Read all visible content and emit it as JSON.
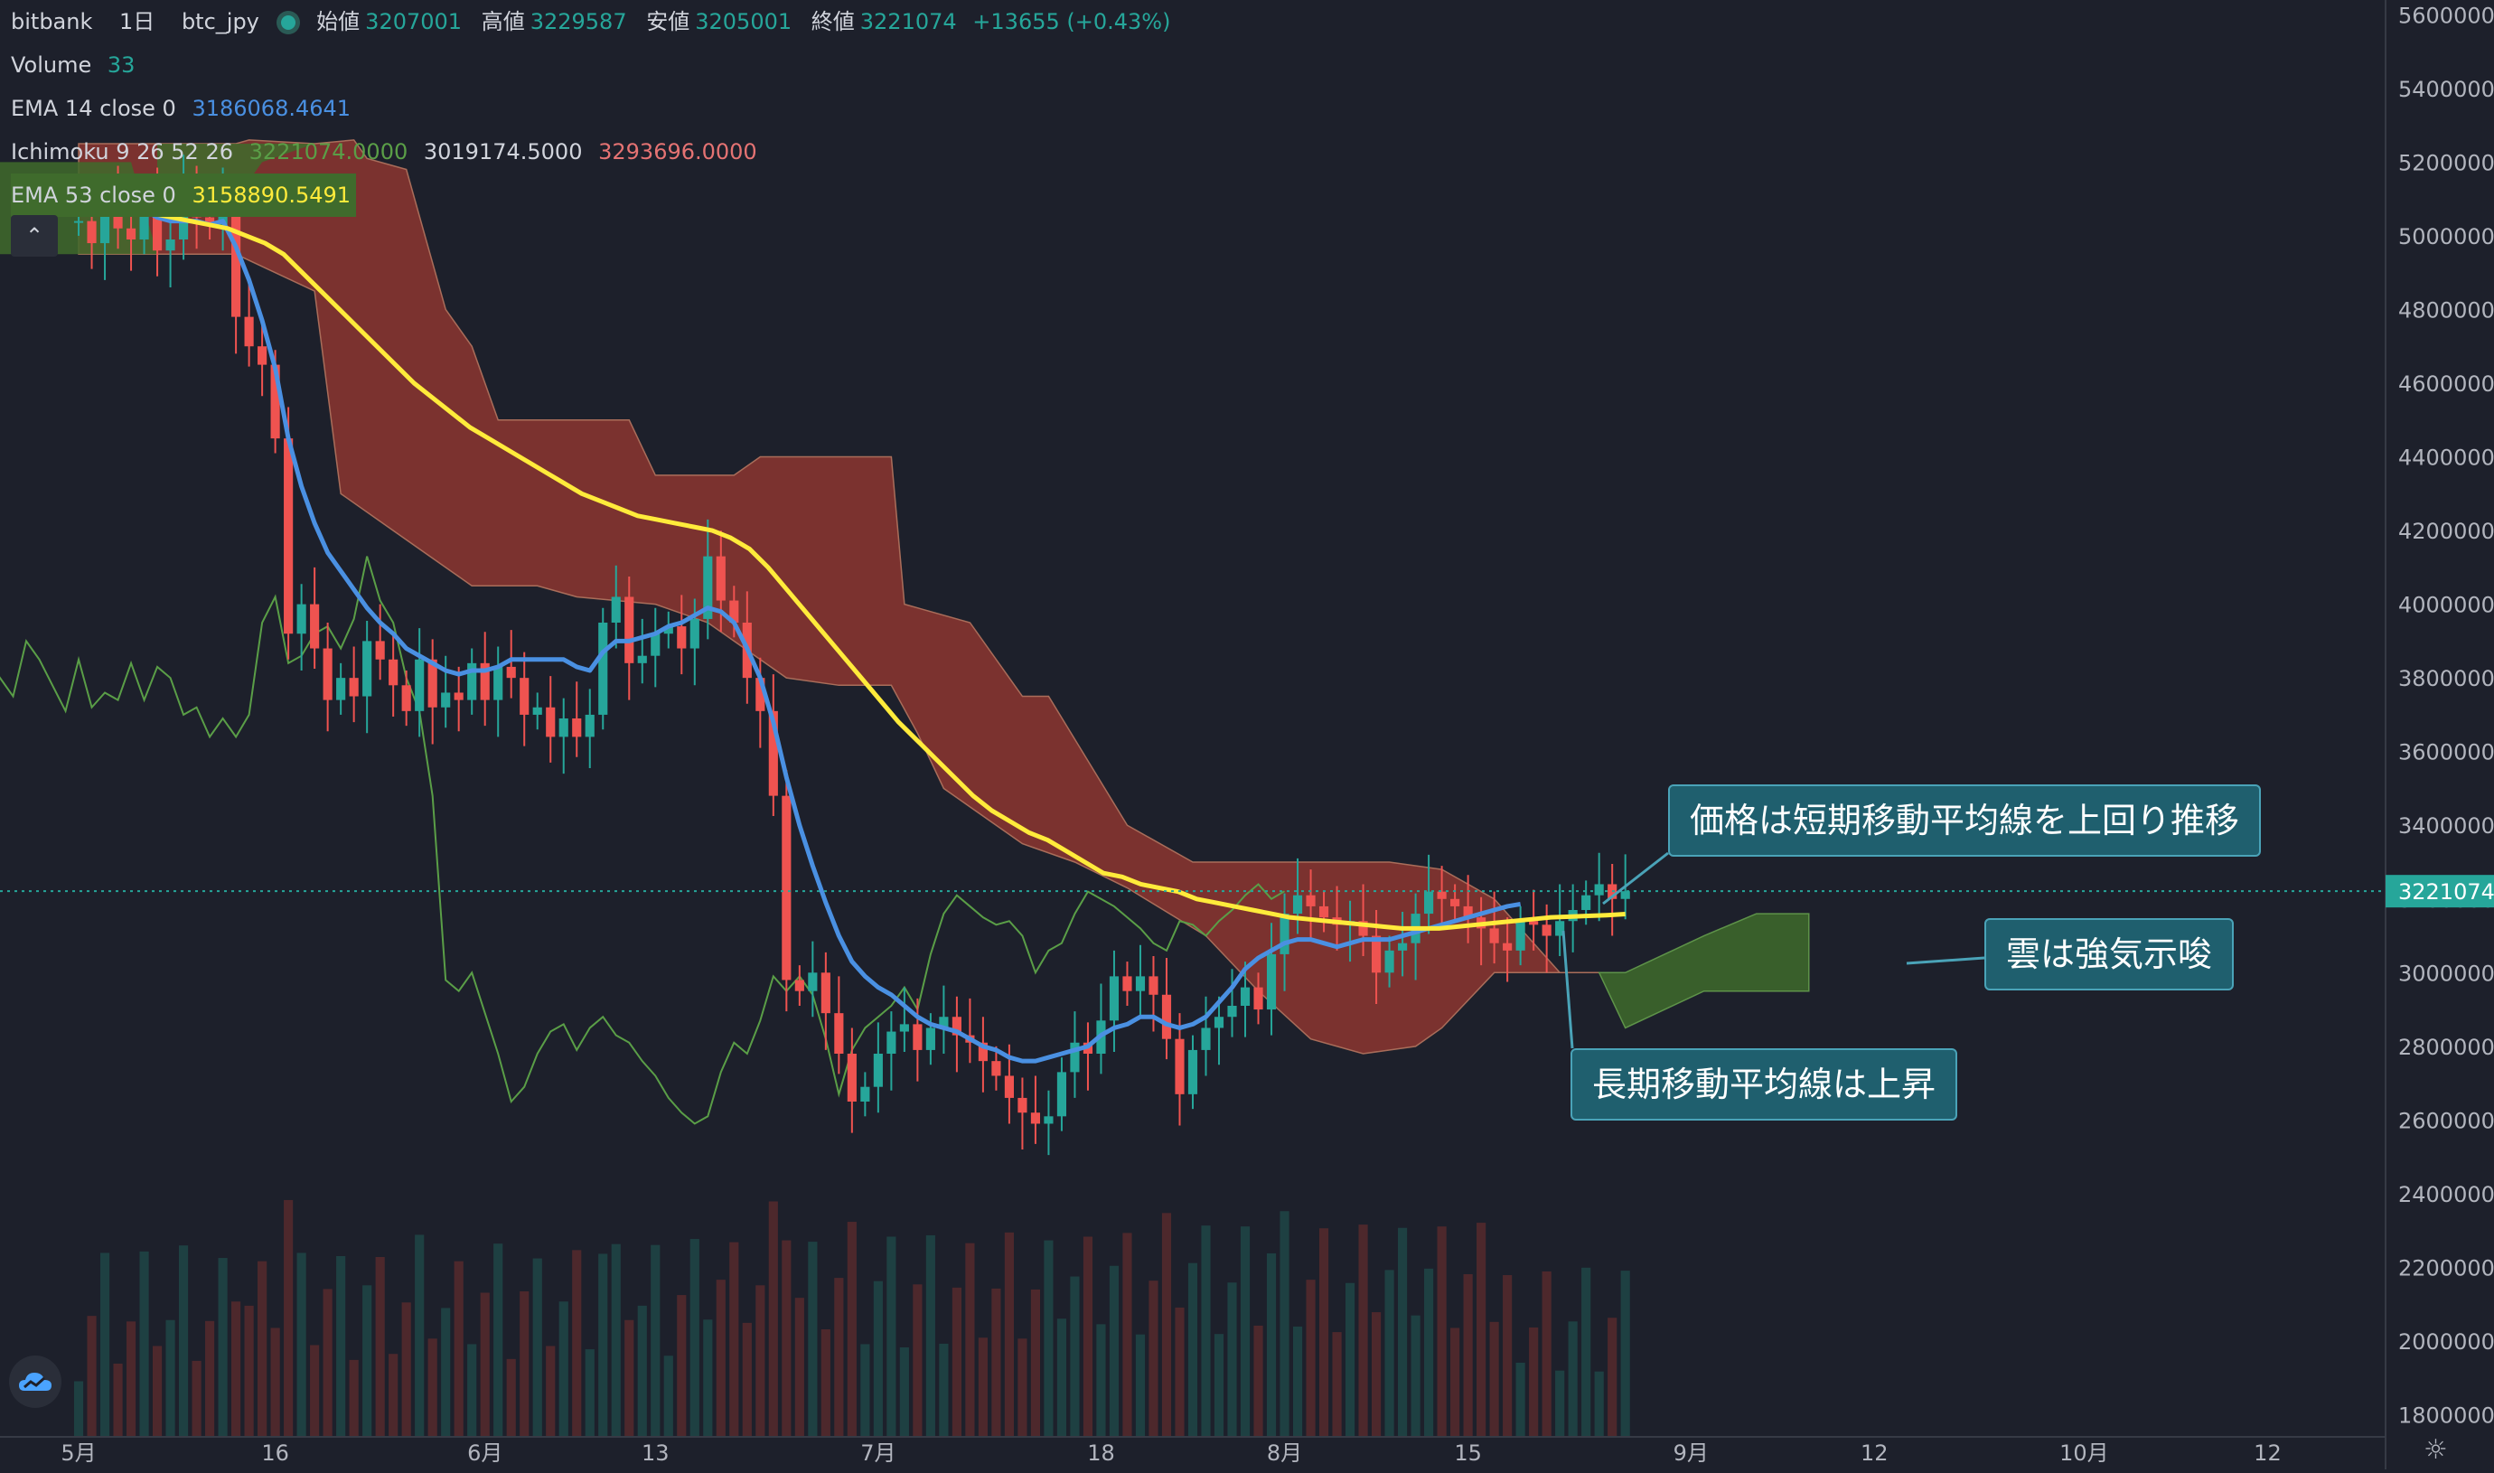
{
  "header": {
    "exchange": "bitbank",
    "interval": "1日",
    "symbol": "btc_jpy",
    "open_label": "始値",
    "open": "3207001",
    "high_label": "高値",
    "high": "3229587",
    "low_label": "安値",
    "low": "3205001",
    "close_label": "終値",
    "close": "3221074",
    "change": "+13655 (+0.43%)"
  },
  "indicators": {
    "volume_label": "Volume",
    "volume_value": "33",
    "ema14_label": "EMA 14 close 0",
    "ema14_value": "3186068.4641",
    "ichimoku_label": "Ichimoku 9 26 52 26",
    "ichimoku_v1": "3221074.0000",
    "ichimoku_v2": "3019174.5000",
    "ichimoku_v3": "3293696.0000",
    "ema53_label": "EMA 53 close 0",
    "ema53_value": "3158890.5491"
  },
  "colors": {
    "background": "#1d202b",
    "up": "#26a69a",
    "down": "#ef5350",
    "ema14": "#4a90e2",
    "ema53": "#ffeb3b",
    "cloud_bear": "#8c3630",
    "cloud_bull": "#3f6b2c",
    "chikou": "#5a9e47",
    "callout_bg": "#1f5f6e"
  },
  "callouts": {
    "price": "価格は短期移動平均線を上回り推移",
    "cloud": "雲は強気示唆",
    "ema_long": "長期移動平均線は上昇"
  },
  "icons": {
    "collapse": "chevron-up-icon",
    "logo": "tradingview-cloud-icon",
    "settings": "gear-icon"
  },
  "chart_data": {
    "type": "candlestick",
    "y_axis": {
      "ticks": [
        "5600000",
        "5400000",
        "5200000",
        "5000000",
        "4800000",
        "4600000",
        "4400000",
        "4200000",
        "4000000",
        "3800000",
        "3600000",
        "3400000",
        "3200000",
        "3000000",
        "2800000",
        "2600000",
        "2400000",
        "2200000",
        "2000000",
        "1800000"
      ],
      "ylim": [
        1740000,
        5640000
      ],
      "last_price": "3221074"
    },
    "x_axis": {
      "ticks": [
        "5月",
        "16",
        "6月",
        "13",
        "7月",
        "18",
        "8月",
        "15",
        "9月",
        "12",
        "10月",
        "12"
      ],
      "tick_day_index": [
        0,
        15,
        31,
        44,
        61,
        78,
        92,
        106,
        123,
        137,
        153,
        167
      ],
      "xlim": [
        -6,
        176
      ]
    },
    "close": [
      5040000,
      4980000,
      5090000,
      5020000,
      4990000,
      5100000,
      4960000,
      4990000,
      5120000,
      5050000,
      5030000,
      5100000,
      4780000,
      4700000,
      4650000,
      4450000,
      3920000,
      4000000,
      3880000,
      3740000,
      3800000,
      3750000,
      3900000,
      3850000,
      3780000,
      3710000,
      3850000,
      3720000,
      3760000,
      3740000,
      3840000,
      3740000,
      3830000,
      3800000,
      3700000,
      3720000,
      3640000,
      3690000,
      3640000,
      3700000,
      3950000,
      4020000,
      3840000,
      3860000,
      3920000,
      3940000,
      3880000,
      3960000,
      4130000,
      4010000,
      3950000,
      3800000,
      3710000,
      3480000,
      2980000,
      2950000,
      3000000,
      2890000,
      2780000,
      2650000,
      2690000,
      2780000,
      2840000,
      2860000,
      2790000,
      2850000,
      2880000,
      2830000,
      2810000,
      2760000,
      2720000,
      2660000,
      2620000,
      2590000,
      2610000,
      2730000,
      2810000,
      2780000,
      2870000,
      2990000,
      2950000,
      2990000,
      2940000,
      2820000,
      2670000,
      2790000,
      2850000,
      2880000,
      2910000,
      2960000,
      2900000,
      3050000,
      3160000,
      3210000,
      3180000,
      3150000,
      3130000,
      3140000,
      3100000,
      3000000,
      3060000,
      3080000,
      3160000,
      3220000,
      3200000,
      3180000,
      3150000,
      3120000,
      3080000,
      3060000,
      3140000,
      3130000,
      3100000,
      3140000,
      3170000,
      3210000,
      3240000,
      3200000,
      3221074
    ],
    "candles_note": "Daily OHLC btc_jpy, May–Aug; open ≈ previous close",
    "ema14": [
      5150000,
      5120000,
      5110000,
      5100000,
      5080000,
      5070000,
      5050000,
      5040000,
      5040000,
      5040000,
      5030000,
      5040000,
      4970000,
      4880000,
      4770000,
      4640000,
      4450000,
      4320000,
      4220000,
      4140000,
      4090000,
      4040000,
      3990000,
      3950000,
      3920000,
      3880000,
      3860000,
      3840000,
      3820000,
      3810000,
      3820000,
      3820000,
      3830000,
      3850000,
      3850000,
      3850000,
      3850000,
      3850000,
      3830000,
      3820000,
      3870000,
      3900000,
      3900000,
      3910000,
      3920000,
      3940000,
      3950000,
      3970000,
      3990000,
      3980000,
      3950000,
      3880000,
      3800000,
      3680000,
      3530000,
      3400000,
      3290000,
      3190000,
      3100000,
      3030000,
      2990000,
      2960000,
      2940000,
      2910000,
      2880000,
      2860000,
      2850000,
      2840000,
      2820000,
      2800000,
      2790000,
      2770000,
      2760000,
      2760000,
      2770000,
      2780000,
      2790000,
      2800000,
      2830000,
      2850000,
      2860000,
      2880000,
      2880000,
      2860000,
      2850000,
      2860000,
      2880000,
      2920000,
      2960000,
      3010000,
      3040000,
      3060000,
      3080000,
      3090000,
      3090000,
      3080000,
      3070000,
      3080000,
      3090000,
      3090000,
      3090000,
      3100000,
      3110000,
      3120000,
      3130000,
      3140000,
      3150000,
      3160000,
      3170000,
      3180000,
      3186068
    ],
    "ema53": [
      5100000,
      5090000,
      5080000,
      5070000,
      5060000,
      5050000,
      5040000,
      5030000,
      5020000,
      5000000,
      4980000,
      4950000,
      4900000,
      4850000,
      4800000,
      4750000,
      4700000,
      4650000,
      4600000,
      4560000,
      4520000,
      4480000,
      4450000,
      4420000,
      4390000,
      4360000,
      4330000,
      4300000,
      4280000,
      4260000,
      4240000,
      4230000,
      4220000,
      4210000,
      4200000,
      4180000,
      4150000,
      4100000,
      4040000,
      3980000,
      3920000,
      3860000,
      3800000,
      3740000,
      3680000,
      3630000,
      3580000,
      3530000,
      3480000,
      3440000,
      3410000,
      3380000,
      3360000,
      3330000,
      3300000,
      3270000,
      3260000,
      3240000,
      3230000,
      3220000,
      3200000,
      3190000,
      3180000,
      3170000,
      3160000,
      3150000,
      3145000,
      3140000,
      3135000,
      3130000,
      3125000,
      3120000,
      3120000,
      3120000,
      3125000,
      3130000,
      3135000,
      3140000,
      3145000,
      3150000,
      3152000,
      3154000,
      3156000,
      3158890
    ],
    "ema53_start_index": 0,
    "volume_max": 260
  }
}
